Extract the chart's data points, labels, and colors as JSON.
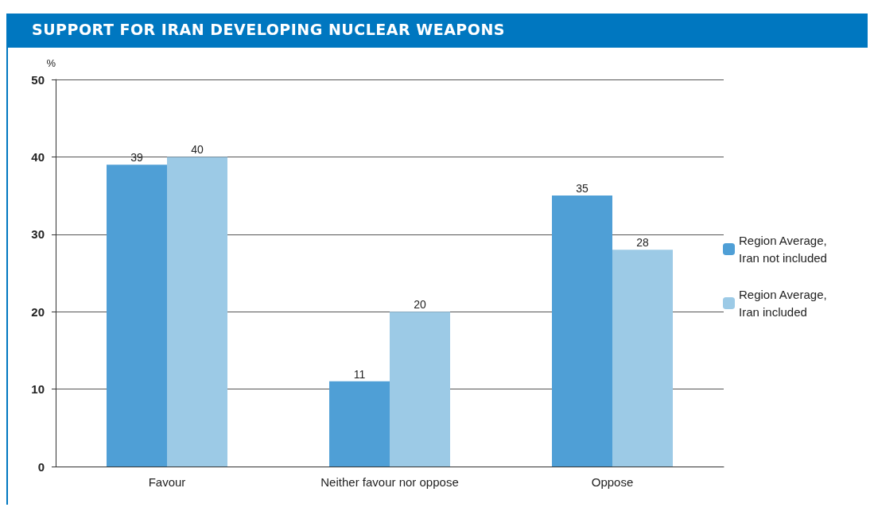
{
  "chart_data": {
    "type": "bar",
    "title": "SUPPORT FOR IRAN DEVELOPING NUCLEAR WEAPONS",
    "ylabel": "%",
    "categories": [
      "Favour",
      "Neither favour nor oppose",
      "Oppose"
    ],
    "series": [
      {
        "name": "Region Average, Iran not included",
        "color": "#4f9fd6",
        "values": [
          39,
          11,
          35
        ]
      },
      {
        "name": "Region Average, Iran included",
        "color": "#9ccae6",
        "values": [
          40,
          20,
          28
        ]
      }
    ],
    "ylim": [
      0,
      50
    ],
    "yticks": [
      0,
      10,
      20,
      30,
      40,
      50
    ],
    "grid": "y",
    "legend": "right",
    "data_labels": true
  }
}
